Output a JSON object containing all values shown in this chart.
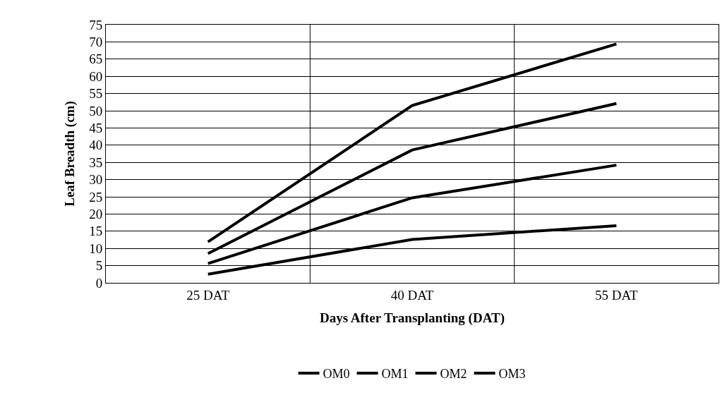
{
  "chart_data": {
    "type": "line",
    "xlabel": "Days After Transplanting (DAT)",
    "ylabel": "Leaf Breadth (cm)",
    "categories": [
      "25 DAT",
      "40 DAT",
      "55 DAT"
    ],
    "series": [
      {
        "name": "OM0",
        "color": "#000000",
        "values": [
          2.5,
          12.6,
          16.6
        ]
      },
      {
        "name": "OM1",
        "color": "#000000",
        "values": [
          5.6,
          24.7,
          34.2
        ]
      },
      {
        "name": "OM2",
        "color": "#000000",
        "values": [
          8.5,
          38.6,
          52.1
        ]
      },
      {
        "name": "OM3",
        "color": "#000000",
        "values": [
          11.9,
          51.5,
          69.4
        ]
      }
    ],
    "ylim": [
      0,
      75
    ],
    "yticks": [
      0,
      5,
      10,
      15,
      20,
      25,
      30,
      35,
      40,
      45,
      50,
      55,
      60,
      65,
      70,
      75
    ],
    "grid": true,
    "legend": "bottom",
    "marker": "none",
    "line_style": "solid"
  }
}
